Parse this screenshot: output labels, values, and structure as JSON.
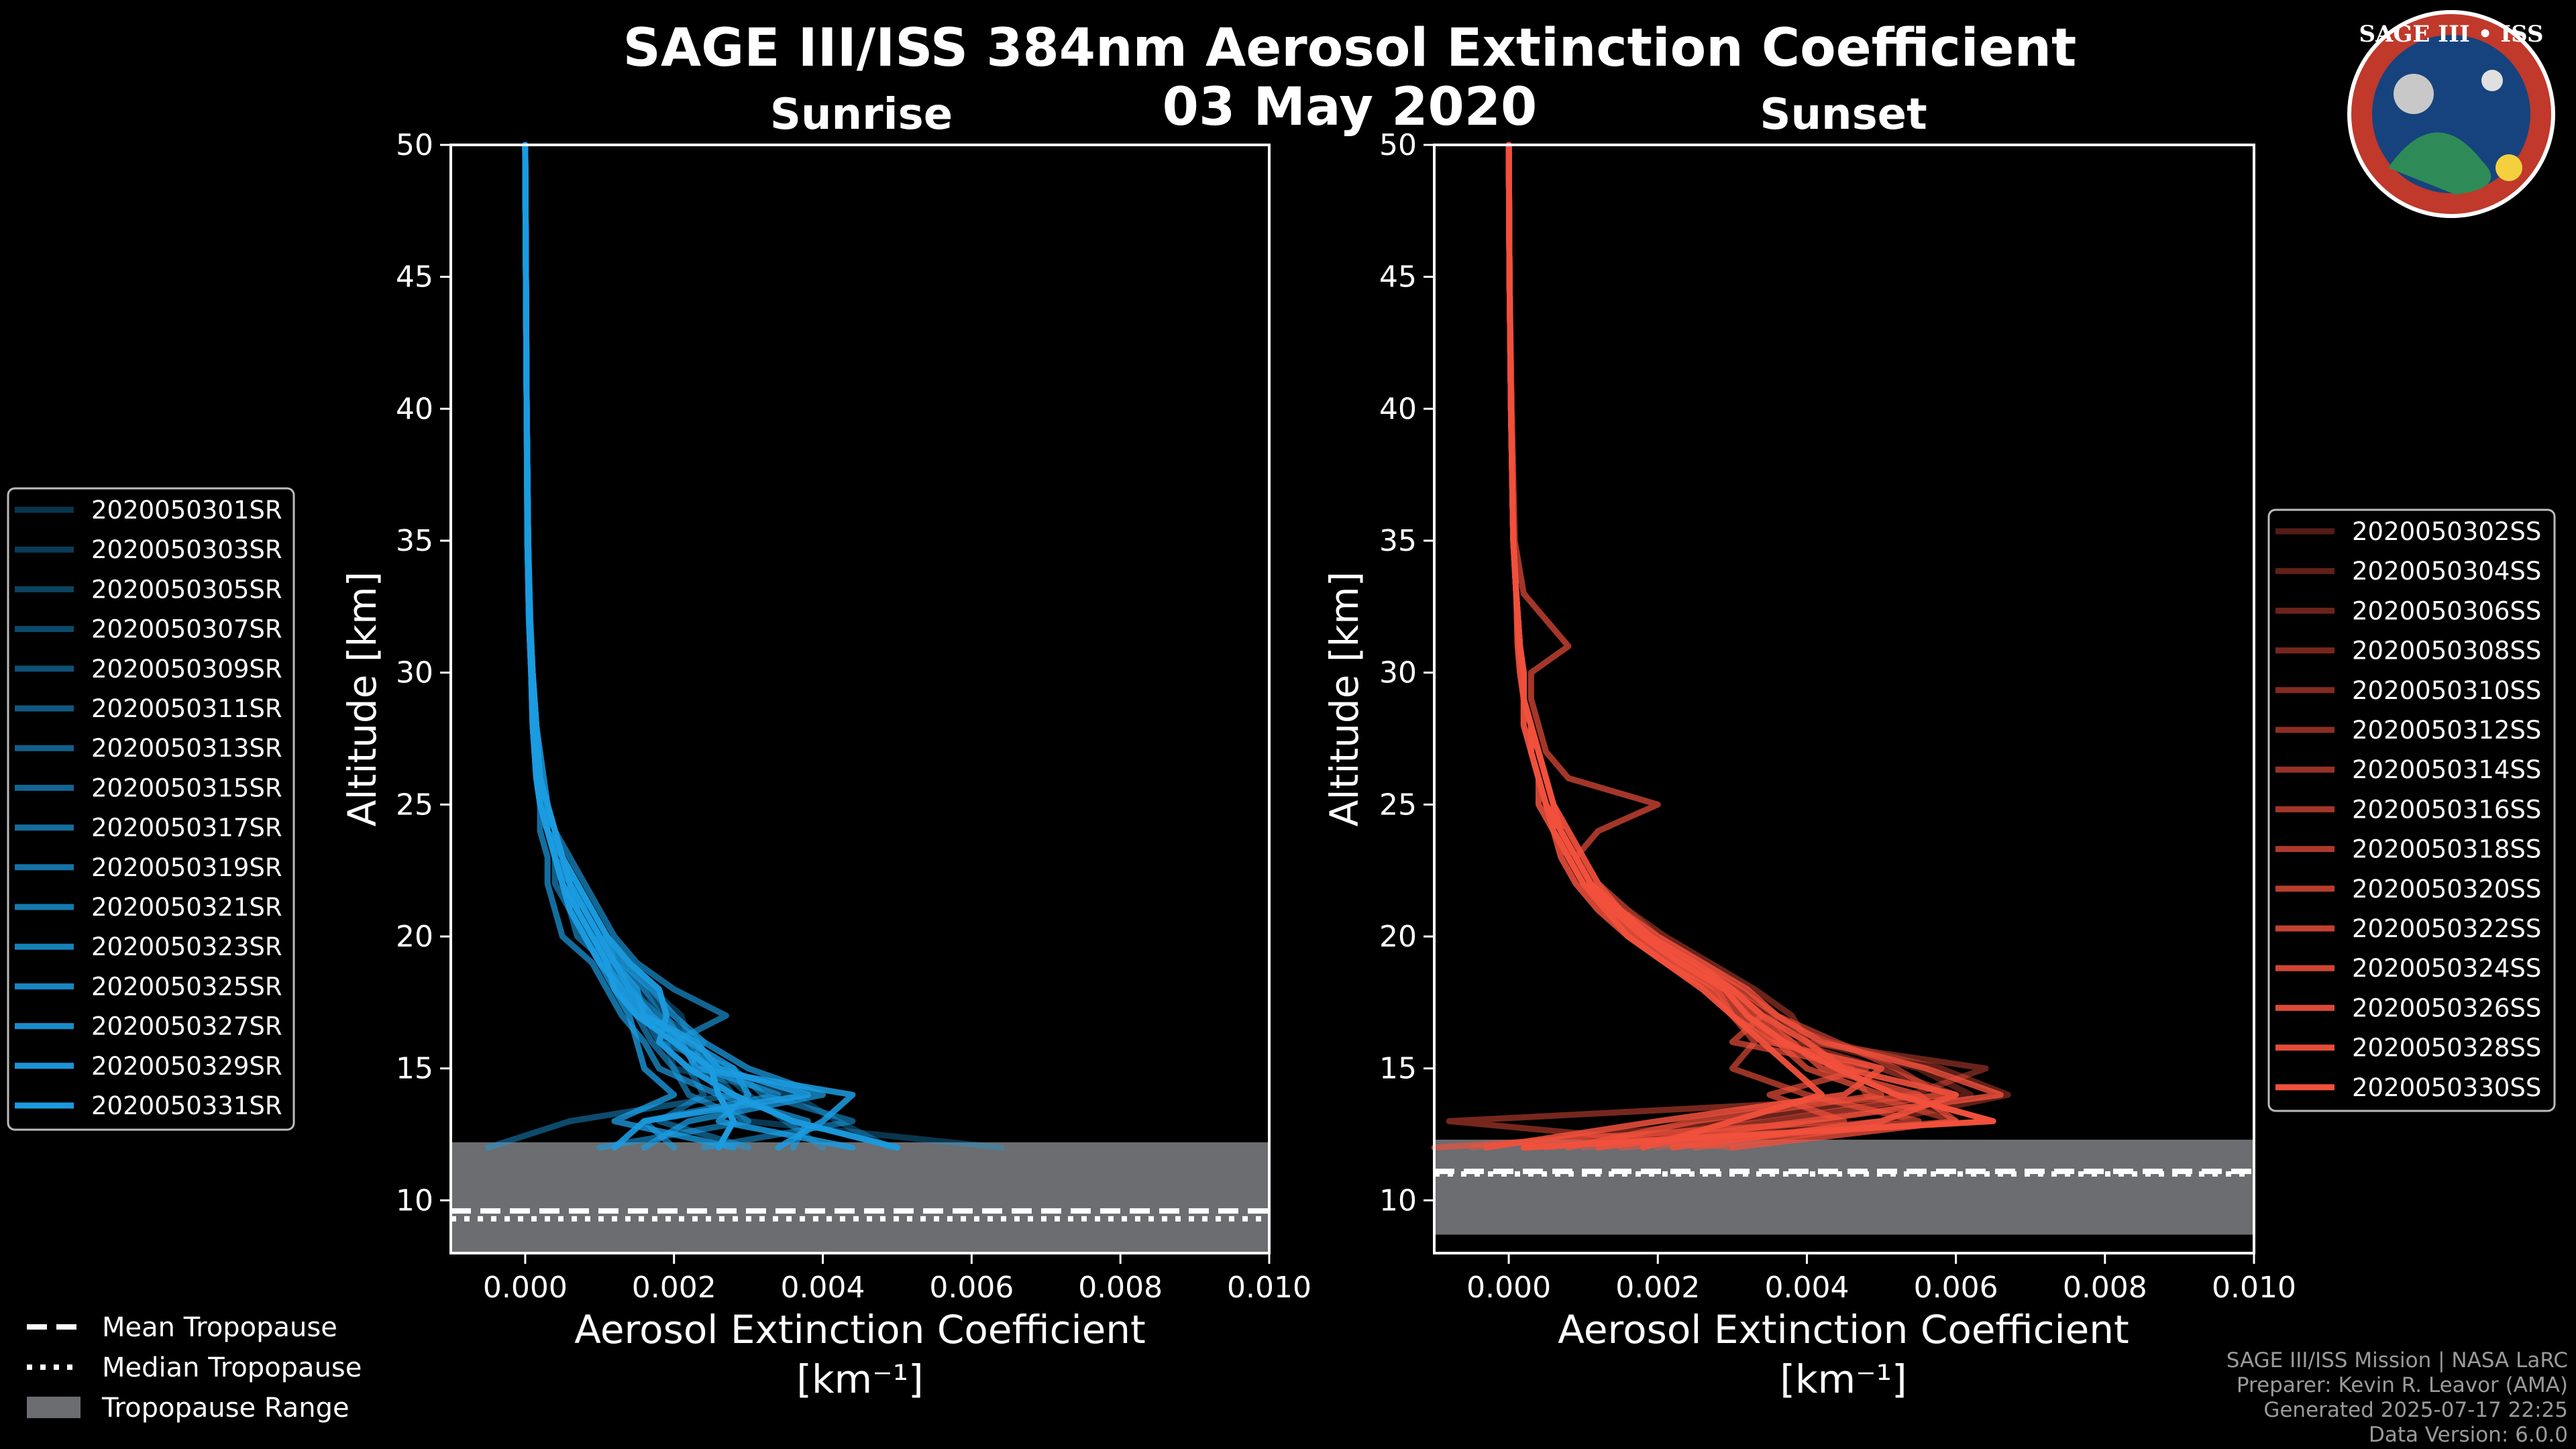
{
  "chart_data": {
    "type": "line",
    "title": "SAGE III/ISS 384nm Aerosol Extinction Coefficient",
    "date": "03 May 2020",
    "logo_text": "SAGE III • ISS",
    "panels": [
      {
        "name": "Sunrise",
        "color": "#1b9be0",
        "xlabel": "Aerosol Extinction Coefficient",
        "xunit": "[km⁻¹]",
        "ylabel": "Altitude [km]",
        "xlim": [
          -0.001,
          0.01
        ],
        "ylim": [
          8,
          50
        ],
        "xticks": [
          0.0,
          0.002,
          0.004,
          0.006,
          0.008,
          0.01
        ],
        "xtick_labels": [
          "0.000",
          "0.002",
          "0.004",
          "0.006",
          "0.008",
          "0.010"
        ],
        "yticks": [
          10,
          15,
          20,
          25,
          30,
          35,
          40,
          45,
          50
        ],
        "ytick_labels": [
          "10",
          "15",
          "20",
          "25",
          "30",
          "35",
          "40",
          "45",
          "50"
        ],
        "tropopause": {
          "mean_km": 9.6,
          "median_km": 9.3,
          "range_km": [
            8.0,
            12.2
          ]
        },
        "legend": [
          "2020050301SR",
          "2020050303SR",
          "2020050305SR",
          "2020050307SR",
          "2020050309SR",
          "2020050311SR",
          "2020050313SR",
          "2020050315SR",
          "2020050317SR",
          "2020050319SR",
          "2020050321SR",
          "2020050323SR",
          "2020050325SR",
          "2020050327SR",
          "2020050329SR",
          "2020050331SR"
        ],
        "profile_altitudes_km": [
          12,
          13,
          14,
          15,
          16,
          17,
          18,
          19,
          20,
          21,
          22,
          23,
          24,
          25,
          26,
          28,
          30,
          32,
          35,
          40,
          45,
          50
        ],
        "profiles": [
          [
            0.0064,
            0.003,
            0.0026,
            0.0024,
            0.0022,
            0.0021,
            0.0017,
            0.0014,
            0.0011,
            0.0009,
            0.0007,
            0.0005,
            0.0004,
            0.0003,
            0.00025,
            0.00015,
            0.0001,
            7e-05,
            4e-05,
            2e-05,
            1e-05,
            0.0
          ],
          [
            0.0049,
            0.0042,
            0.0036,
            0.002,
            0.0019,
            0.0017,
            0.0015,
            0.0012,
            0.001,
            0.0008,
            0.0006,
            0.0005,
            0.0004,
            0.0003,
            0.0002,
            0.00015,
            0.0001,
            6e-05,
            4e-05,
            2e-05,
            1e-05,
            0.0
          ],
          [
            0.004,
            0.0035,
            0.003,
            0.0026,
            0.0022,
            0.0018,
            0.0016,
            0.0013,
            0.001,
            0.0008,
            0.0007,
            0.0005,
            0.0004,
            0.0003,
            0.0002,
            0.00015,
            0.0001,
            6e-05,
            4e-05,
            2e-05,
            1e-05,
            0.0
          ],
          [
            -0.0005,
            0.0006,
            0.0028,
            0.0025,
            0.0021,
            0.0019,
            0.0016,
            0.0012,
            0.0011,
            0.0009,
            0.0007,
            0.0005,
            0.0004,
            0.0003,
            0.0002,
            0.00015,
            0.0001,
            6e-05,
            4e-05,
            2e-05,
            1e-05,
            0.0
          ],
          [
            0.003,
            0.0018,
            0.0024,
            0.0022,
            0.0024,
            0.0018,
            0.0014,
            0.001,
            0.0008,
            0.0006,
            0.0005,
            0.0004,
            0.0003,
            0.00025,
            0.0002,
            0.00015,
            0.0001,
            6e-05,
            4e-05,
            2e-05,
            1e-05,
            0.0
          ],
          [
            0.0024,
            0.0044,
            0.0032,
            0.0028,
            0.0018,
            0.0016,
            0.0014,
            0.0011,
            0.0009,
            0.0007,
            0.0006,
            0.0005,
            0.0003,
            0.00025,
            0.0002,
            0.00012,
            0.0001,
            6e-05,
            4e-05,
            2e-05,
            1e-05,
            0.0
          ],
          [
            0.001,
            0.003,
            0.0022,
            0.002,
            0.0017,
            0.0015,
            0.0013,
            0.0011,
            0.0007,
            0.0006,
            0.0004,
            0.0004,
            0.0003,
            0.0002,
            0.0002,
            0.00012,
            0.0001,
            6e-05,
            4e-05,
            2e-05,
            1e-05,
            0.0
          ],
          [
            0.002,
            0.0016,
            0.0034,
            0.0024,
            0.002,
            0.0027,
            0.002,
            0.0015,
            0.0012,
            0.001,
            0.0008,
            0.0006,
            0.0004,
            0.0003,
            0.0002,
            0.00015,
            0.0001,
            7e-05,
            4e-05,
            2e-05,
            1e-05,
            0.0
          ],
          [
            0.0036,
            0.0038,
            0.0026,
            0.0018,
            0.0016,
            0.0013,
            0.0011,
            0.0009,
            0.0005,
            0.0004,
            0.0003,
            0.0003,
            0.0002,
            0.0002,
            0.00015,
            0.0001,
            8e-05,
            5e-05,
            3e-05,
            2e-05,
            1e-05,
            0.0
          ],
          [
            0.0016,
            0.0022,
            0.004,
            0.003,
            0.0024,
            0.002,
            0.0017,
            0.0013,
            0.001,
            0.0008,
            0.0006,
            0.0005,
            0.0004,
            0.0003,
            0.00025,
            0.00015,
            0.0001,
            6e-05,
            4e-05,
            2e-05,
            1e-05,
            0.0
          ],
          [
            0.0028,
            0.0012,
            0.002,
            0.0016,
            0.0015,
            0.0014,
            0.0012,
            0.001,
            0.0008,
            0.0006,
            0.0005,
            0.0004,
            0.0003,
            0.0002,
            0.00015,
            0.0001,
            8e-05,
            5e-05,
            3e-05,
            2e-05,
            1e-05,
            0.0
          ],
          [
            0.0044,
            0.0026,
            0.003,
            0.0028,
            0.0022,
            0.0016,
            0.0015,
            0.0012,
            0.0009,
            0.0007,
            0.0006,
            0.0004,
            0.0003,
            0.0002,
            0.0002,
            0.00012,
            0.0001,
            6e-05,
            4e-05,
            2e-05,
            1e-05,
            0.0
          ],
          [
            0.0034,
            0.004,
            0.0044,
            0.0023,
            0.0021,
            0.0017,
            0.0014,
            0.0012,
            0.001,
            0.0008,
            0.0006,
            0.0005,
            0.0003,
            0.0003,
            0.0002,
            0.00015,
            0.0001,
            6e-05,
            4e-05,
            2e-05,
            1e-05,
            0.0
          ],
          [
            0.0012,
            0.0016,
            0.0038,
            0.0026,
            0.0023,
            0.0016,
            0.0013,
            0.001,
            0.0008,
            0.0006,
            0.0005,
            0.0004,
            0.0003,
            0.0002,
            0.00015,
            0.0001,
            8e-05,
            5e-05,
            3e-05,
            2e-05,
            1e-05,
            0.0
          ],
          [
            0.005,
            0.0036,
            0.0028,
            0.0022,
            0.0018,
            0.0019,
            0.0018,
            0.0014,
            0.0011,
            0.0009,
            0.0007,
            0.0005,
            0.0004,
            0.0003,
            0.0002,
            0.00015,
            0.0001,
            6e-05,
            4e-05,
            2e-05,
            1e-05,
            0.0
          ],
          [
            0.0026,
            0.0028,
            0.0026,
            0.0025,
            0.002,
            0.0015,
            0.0012,
            0.0011,
            0.0009,
            0.0007,
            0.0005,
            0.0004,
            0.0003,
            0.0002,
            0.00015,
            0.0001,
            8e-05,
            5e-05,
            3e-05,
            2e-05,
            1e-05,
            0.0
          ]
        ]
      },
      {
        "name": "Sunset",
        "color": "#f0503c",
        "xlabel": "Aerosol Extinction Coefficient",
        "xunit": "[km⁻¹]",
        "ylabel": "Altitude [km]",
        "xlim": [
          -0.001,
          0.01
        ],
        "ylim": [
          8,
          50
        ],
        "xticks": [
          0.0,
          0.002,
          0.004,
          0.006,
          0.008,
          0.01
        ],
        "xtick_labels": [
          "0.000",
          "0.002",
          "0.004",
          "0.006",
          "0.008",
          "0.010"
        ],
        "yticks": [
          10,
          15,
          20,
          25,
          30,
          35,
          40,
          45,
          50
        ],
        "ytick_labels": [
          "10",
          "15",
          "20",
          "25",
          "30",
          "35",
          "40",
          "45",
          "50"
        ],
        "tropopause": {
          "mean_km": 11.1,
          "median_km": 11.0,
          "range_km": [
            8.7,
            12.3
          ]
        },
        "legend": [
          "2020050302SS",
          "2020050304SS",
          "2020050306SS",
          "2020050308SS",
          "2020050310SS",
          "2020050312SS",
          "2020050314SS",
          "2020050316SS",
          "2020050318SS",
          "2020050320SS",
          "2020050322SS",
          "2020050324SS",
          "2020050326SS",
          "2020050328SS",
          "2020050330SS"
        ],
        "profile_altitudes_km": [
          12,
          13,
          14,
          15,
          16,
          17,
          18,
          19,
          20,
          21,
          22,
          23,
          24,
          25,
          26,
          27,
          28,
          29,
          30,
          31,
          33,
          35,
          40,
          45,
          50
        ],
        "profiles": [
          [
            0.002,
            0.004,
            0.0062,
            0.0055,
            0.0041,
            0.0036,
            0.0031,
            0.0026,
            0.002,
            0.0016,
            0.0012,
            0.001,
            0.0008,
            0.0006,
            0.0005,
            0.0004,
            0.0003,
            0.0002,
            0.0002,
            0.00015,
            0.0001,
            6e-05,
            3e-05,
            1e-05,
            0.0
          ],
          [
            0.001,
            0.005,
            0.0067,
            0.0058,
            0.0043,
            0.0034,
            0.003,
            0.0025,
            0.0019,
            0.0015,
            0.0011,
            0.0009,
            0.0007,
            0.0006,
            0.0005,
            0.0004,
            0.0003,
            0.0002,
            0.0002,
            0.00015,
            0.0001,
            6e-05,
            3e-05,
            1e-05,
            0.0
          ],
          [
            -0.0005,
            0.003,
            0.0054,
            0.0064,
            0.004,
            0.0038,
            0.0033,
            0.0027,
            0.0021,
            0.0016,
            0.0012,
            0.001,
            0.0008,
            0.0006,
            0.0005,
            0.0004,
            0.0003,
            0.0002,
            0.0002,
            0.00015,
            0.0001,
            6e-05,
            3e-05,
            1e-05,
            0.0
          ],
          [
            0.003,
            -0.0008,
            0.006,
            0.005,
            0.0038,
            0.0035,
            0.003,
            0.0024,
            0.0018,
            0.0014,
            0.0011,
            0.0009,
            0.0007,
            0.0005,
            0.0004,
            0.0003,
            0.0003,
            0.0002,
            0.0002,
            0.00015,
            0.0001,
            6e-05,
            3e-05,
            1e-05,
            0.0
          ],
          [
            0.0015,
            0.006,
            0.0048,
            0.0046,
            0.0036,
            0.0032,
            0.0029,
            0.0023,
            0.0018,
            0.0014,
            0.001,
            0.0008,
            0.0007,
            0.0005,
            0.0004,
            0.0003,
            0.0003,
            0.0002,
            0.0002,
            0.00015,
            0.0001,
            6e-05,
            3e-05,
            1e-05,
            0.0
          ],
          [
            0.0005,
            0.0035,
            0.0058,
            0.0052,
            0.0044,
            0.0036,
            0.0031,
            0.0025,
            0.0019,
            0.0015,
            0.0011,
            0.0009,
            0.0007,
            0.0006,
            0.0005,
            0.0004,
            0.0003,
            0.0002,
            0.0002,
            0.00015,
            0.0001,
            6e-05,
            3e-05,
            1e-05,
            0.0
          ],
          [
            0.0025,
            0.0055,
            0.004,
            0.003,
            0.0033,
            0.003,
            0.0028,
            0.0022,
            0.0017,
            0.0013,
            0.001,
            0.0008,
            0.0006,
            0.0005,
            0.0004,
            0.0003,
            0.0002,
            0.0002,
            0.00015,
            0.00012,
            0.0001,
            6e-05,
            3e-05,
            1e-05,
            0.0
          ],
          [
            -0.001,
            0.0045,
            0.0035,
            0.0048,
            0.003,
            0.0034,
            0.003,
            0.0024,
            0.0018,
            0.0014,
            0.0011,
            0.0009,
            0.0012,
            0.002,
            0.0008,
            0.0005,
            0.0004,
            0.0003,
            0.0003,
            0.0008,
            0.0002,
            8e-05,
            4e-05,
            1e-05,
            0.0
          ],
          [
            0.0008,
            0.0025,
            0.005,
            0.004,
            0.0036,
            0.0031,
            0.0028,
            0.0022,
            0.0017,
            0.0013,
            0.001,
            0.0008,
            0.0006,
            0.0005,
            0.0004,
            0.0003,
            0.0003,
            0.0002,
            0.0002,
            0.00015,
            0.0001,
            6e-05,
            3e-05,
            1e-05,
            0.0
          ],
          [
            0.003,
            0.006,
            0.0055,
            0.0042,
            0.0038,
            0.0033,
            0.003,
            0.0024,
            0.0019,
            0.0015,
            0.0011,
            0.0009,
            0.0007,
            0.0006,
            0.0005,
            0.0004,
            0.0003,
            0.0002,
            0.0002,
            0.00015,
            0.0001,
            6e-05,
            3e-05,
            1e-05,
            0.0
          ],
          [
            0.0012,
            0.004,
            0.0066,
            0.0056,
            0.0042,
            0.0036,
            0.0032,
            0.0026,
            0.002,
            0.0015,
            0.0012,
            0.001,
            0.0008,
            0.0006,
            0.0005,
            0.0004,
            0.0003,
            0.0002,
            0.0002,
            0.00015,
            0.0001,
            6e-05,
            3e-05,
            1e-05,
            0.0
          ],
          [
            -0.0003,
            0.002,
            0.0045,
            0.005,
            0.0035,
            0.003,
            0.0027,
            0.0021,
            0.0016,
            0.0012,
            0.0009,
            0.0007,
            0.0006,
            0.0004,
            0.0004,
            0.0003,
            0.0002,
            0.0002,
            0.00015,
            0.00012,
            0.0001,
            6e-05,
            3e-05,
            1e-05,
            0.0
          ],
          [
            0.0022,
            0.005,
            0.006,
            0.0045,
            0.004,
            0.0034,
            0.003,
            0.0025,
            0.0019,
            0.0015,
            0.0011,
            0.0009,
            0.0007,
            0.0006,
            0.0005,
            0.0004,
            0.0003,
            0.0002,
            0.0002,
            0.00015,
            0.0001,
            6e-05,
            3e-05,
            1e-05,
            0.0
          ],
          [
            0.0018,
            0.003,
            0.0042,
            0.0038,
            0.0034,
            0.003,
            0.0026,
            0.0021,
            0.0016,
            0.0013,
            0.001,
            0.0008,
            0.0006,
            0.0005,
            0.0004,
            0.0003,
            0.0003,
            0.0002,
            0.0002,
            0.00015,
            0.0001,
            6e-05,
            3e-05,
            1e-05,
            0.0
          ],
          [
            0.0002,
            0.0065,
            0.0052,
            0.0044,
            0.0037,
            0.0032,
            0.0029,
            0.0023,
            0.0018,
            0.0014,
            0.0011,
            0.0009,
            0.0007,
            0.0005,
            0.0004,
            0.0003,
            0.0003,
            0.0002,
            0.0002,
            0.00015,
            0.0001,
            6e-05,
            3e-05,
            1e-05,
            0.0
          ]
        ]
      }
    ],
    "bottom_legend": [
      "Mean Tropopause",
      "Median Tropopause",
      "Tropopause Range"
    ]
  },
  "credits": [
    "SAGE III/ISS Mission | NASA LaRC",
    "Preparer: Kevin R. Leavor (AMA)",
    "Generated 2025-07-17 22:25",
    "Data Version: 6.0.0"
  ]
}
